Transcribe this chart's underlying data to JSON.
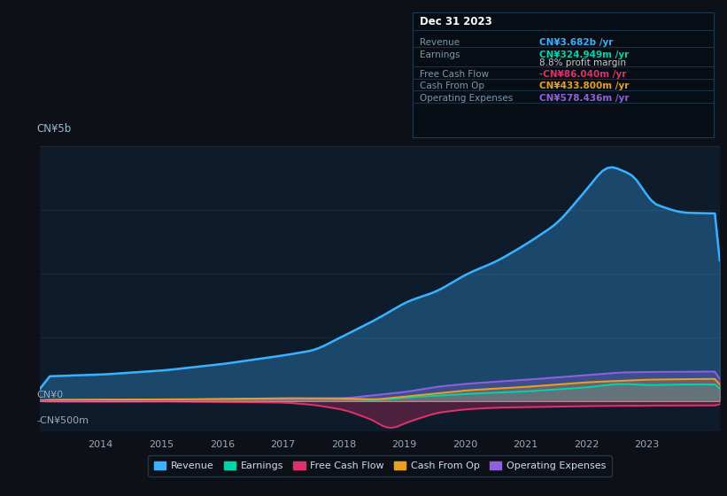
{
  "bg_color": "#0d1117",
  "chart_bg": "#0d1b2a",
  "ylabel_top": "CN¥5b",
  "y0_label": "CN¥0",
  "yneg_label": "-CN¥500m",
  "ylim_min": -600000000,
  "ylim_max": 5000000000,
  "colors": {
    "revenue": "#3ab0ff",
    "earnings": "#00d4aa",
    "free_cash_flow": "#e0306a",
    "cash_from_op": "#e8a020",
    "operating_expenses": "#9060e0"
  },
  "legend_labels": [
    "Revenue",
    "Earnings",
    "Free Cash Flow",
    "Cash From Op",
    "Operating Expenses"
  ],
  "xticks": [
    2014,
    2015,
    2016,
    2017,
    2018,
    2019,
    2020,
    2021,
    2022,
    2023
  ],
  "tooltip_title": "Dec 31 2023",
  "tooltip_rows": [
    {
      "label": "Revenue",
      "value": "CN¥3.682b /yr",
      "color": "#3ab0ff",
      "extra": null
    },
    {
      "label": "Earnings",
      "value": "CN¥324.949m /yr",
      "color": "#00d4aa",
      "extra": "8.8% profit margin"
    },
    {
      "label": "Free Cash Flow",
      "value": "-CN¥86.040m /yr",
      "color": "#e0306a",
      "extra": null
    },
    {
      "label": "Cash From Op",
      "value": "CN¥433.800m /yr",
      "color": "#e8a020",
      "extra": null
    },
    {
      "label": "Operating Expenses",
      "value": "CN¥578.436m /yr",
      "color": "#9060e0",
      "extra": null
    }
  ]
}
